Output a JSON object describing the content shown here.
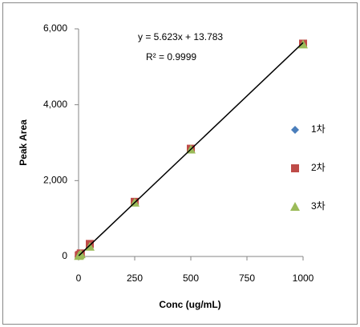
{
  "chart_data": {
    "type": "scatter",
    "x_label": "Conc (ug/mL)",
    "y_label": "Peak Area",
    "equation": "y = 5.623x +  13.783",
    "r_squared": "R² = 0.9999",
    "trendline": {
      "slope": 5.623,
      "intercept": 13.783,
      "color": "#000000"
    },
    "xlim": [
      0,
      1000
    ],
    "xticks": [
      0,
      250,
      500,
      750,
      1000
    ],
    "ylim": [
      0,
      6000
    ],
    "yticks": [
      0,
      {
        "value": 2000,
        "label": "2,000"
      },
      {
        "value": 4000,
        "label": "4,000"
      },
      {
        "value": 6000,
        "label": "6,000"
      }
    ],
    "legend": "right",
    "series": [
      {
        "name": "1차",
        "color": "#4a7ebb",
        "marker": "diamond",
        "x": [
          1,
          5,
          10,
          50,
          250,
          500,
          1000
        ],
        "values": [
          20,
          40,
          70,
          300,
          1420,
          2830,
          5600
        ]
      },
      {
        "name": "2차",
        "color": "#be4b48",
        "marker": "square",
        "x": [
          1,
          5,
          10,
          50,
          250,
          500,
          1000
        ],
        "values": [
          25,
          45,
          80,
          330,
          1440,
          2840,
          5610
        ]
      },
      {
        "name": "3차",
        "color": "#9bbb59",
        "marker": "triangle",
        "x": [
          1,
          5,
          10,
          50,
          250,
          500,
          1000
        ],
        "values": [
          15,
          35,
          60,
          260,
          1420,
          2820,
          5590
        ]
      }
    ]
  }
}
